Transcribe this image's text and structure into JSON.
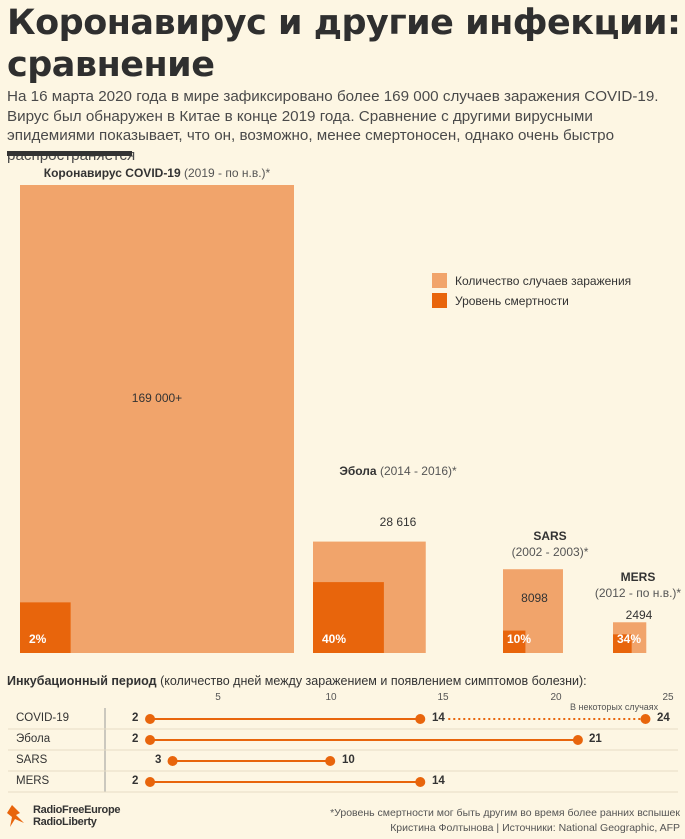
{
  "header": {
    "title": "Коронавирус и другие инфекции: сравнение",
    "subtitle": "На 16 марта 2020 года в мире зафиксировано более 169 000 случаев заражения COVID-19. Вирус был обнаружен в Китае в конце 2019 года. Сравнение с другими вирусными эпидемиями показывает, что он, возможно, менее смертоносен, однако очень быстро распространяется"
  },
  "colors": {
    "cases": "#f1a46b",
    "mortality": "#e8650c",
    "background": "#fdf6e3",
    "text": "#333333"
  },
  "legend": {
    "cases": "Количество случаев заражения",
    "mortality": "Уровень смертности"
  },
  "chart_data": [
    {
      "type": "bar",
      "categories": [
        "Коронавирус COVID-19",
        "Эбола",
        "SARS",
        "MERS"
      ],
      "periods": [
        "(2019 - по н.в.)*",
        "(2014 - 2016)*",
        "(2002 - 2003)*",
        "(2012 - по н.в.)*"
      ],
      "series": [
        {
          "name": "Количество случаев заражения",
          "values": [
            169000,
            28616,
            8098,
            2494
          ],
          "labels": [
            "169 000+",
            "28 616",
            "8098",
            "2494"
          ]
        },
        {
          "name": "Уровень смертности",
          "values": [
            2,
            40,
            10,
            34
          ],
          "labels": [
            "2%",
            "40%",
            "10%",
            "34%"
          ]
        }
      ]
    },
    {
      "type": "range",
      "title": "Инкубационный период",
      "title_note": "(количество дней между заражением и появлением симптомов болезни):",
      "x_ticks": [
        "5",
        "10",
        "15",
        "20",
        "25"
      ],
      "xlim": [
        0,
        25
      ],
      "rows": [
        {
          "name": "COVID-19",
          "min": 2,
          "max": 14,
          "extended_max": 24,
          "min_label": "2",
          "max_label": "14",
          "extended_label": "24"
        },
        {
          "name": "Эбола",
          "min": 2,
          "max": 21,
          "min_label": "2",
          "max_label": "21"
        },
        {
          "name": "SARS",
          "min": 3,
          "max": 10,
          "min_label": "3",
          "max_label": "10"
        },
        {
          "name": "MERS",
          "min": 2,
          "max": 14,
          "min_label": "2",
          "max_label": "14"
        }
      ],
      "extended_note": "В некоторых случаях"
    }
  ],
  "footer": {
    "logo_line1": "RadioFreeEurope",
    "logo_line2": "RadioLiberty",
    "note": "*Уровень смертности мог быть другим во время более ранних вспышек",
    "credits": "Кристина Фолтынова | Источники: National Geographic, AFP"
  }
}
